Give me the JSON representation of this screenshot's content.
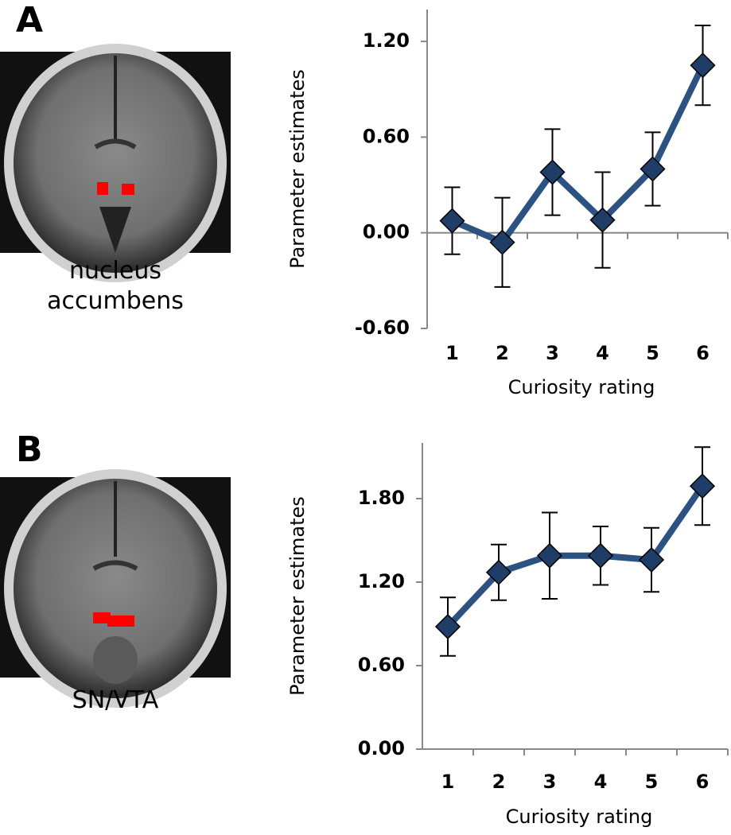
{
  "chart_data": [
    {
      "type": "line",
      "panel_label": "A",
      "region_label": "nucleus accumbens",
      "y_label": "Parameter estimates",
      "x_label": "Curiosity rating",
      "categories": [
        "1",
        "2",
        "3",
        "4",
        "5",
        "6"
      ],
      "values": [
        0.075,
        -0.06,
        0.38,
        0.08,
        0.4,
        1.05
      ],
      "errors": [
        0.21,
        0.28,
        0.27,
        0.3,
        0.23,
        0.25
      ],
      "color": "#2c5282",
      "marker_color": "#1f3d66",
      "ylim": [
        -0.6,
        1.4
      ],
      "yticks": [
        {
          "value": -0.6,
          "label": "-0.60"
        },
        {
          "value": 0,
          "label": "0.00"
        },
        {
          "value": 0.6,
          "label": "0.60"
        },
        {
          "value": 1.2,
          "label": "1.20"
        }
      ]
    },
    {
      "type": "line",
      "panel_label": "B",
      "region_label": "SN/VTA",
      "y_label": "Parameter estimates",
      "x_label": "Curiosity rating",
      "categories": [
        "1",
        "2",
        "3",
        "4",
        "5",
        "6"
      ],
      "values": [
        0.88,
        1.27,
        1.39,
        1.39,
        1.36,
        1.89
      ],
      "errors": [
        0.21,
        0.2,
        0.31,
        0.21,
        0.23,
        0.28
      ],
      "color": "#2c5282",
      "marker_color": "#1f3d66",
      "ylim": [
        0,
        2.2
      ],
      "yticks": [
        {
          "value": 0,
          "label": "0.00"
        },
        {
          "value": 0.6,
          "label": "0.60"
        },
        {
          "value": 1.2,
          "label": "1.20"
        },
        {
          "value": 1.8,
          "label": "1.80"
        }
      ]
    }
  ]
}
